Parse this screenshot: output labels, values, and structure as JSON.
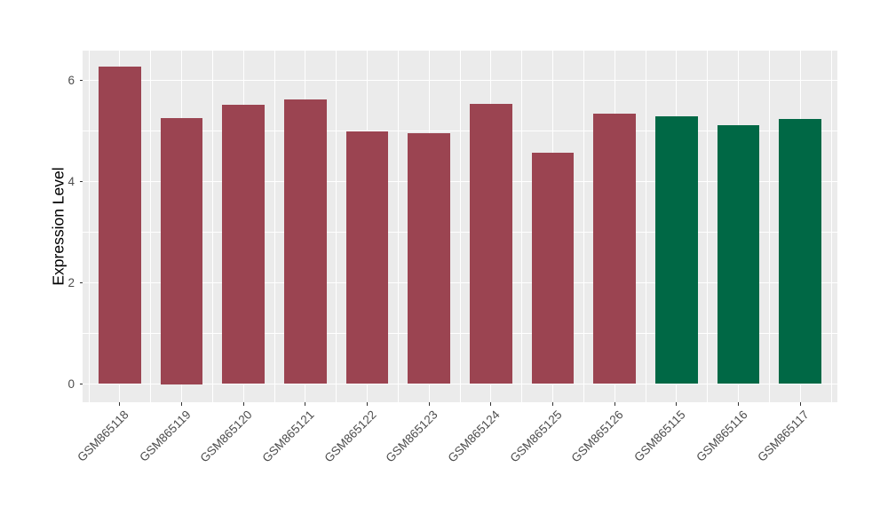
{
  "figure": {
    "background_color": "#FFFFFF",
    "panel_background_color": "#EBEBEB",
    "gridline_color": "#FFFFFF",
    "tick_label_color": "#4D4D4D",
    "axis_title_color": "#000000"
  },
  "chart_data": {
    "type": "bar",
    "title": "",
    "xlabel": "",
    "ylabel": "Expression Level",
    "categories": [
      "GSM865118",
      "GSM865119",
      "GSM865120",
      "GSM865121",
      "GSM865122",
      "GSM865123",
      "GSM865124",
      "GSM865125",
      "GSM865126",
      "GSM865115",
      "GSM865116",
      "GSM865117"
    ],
    "values": [
      6.27,
      5.25,
      5.51,
      5.63,
      4.99,
      4.96,
      5.54,
      4.57,
      5.35,
      5.29,
      5.11,
      5.24
    ],
    "bar_colors": [
      "#9B4451",
      "#9B4451",
      "#9B4451",
      "#9B4451",
      "#9B4451",
      "#9B4451",
      "#9B4451",
      "#9B4451",
      "#9B4451",
      "#006845",
      "#006845",
      "#006845"
    ],
    "color_groups": [
      {
        "color": "#9B4451",
        "categories": [
          "GSM865118",
          "GSM865119",
          "GSM865120",
          "GSM865121",
          "GSM865122",
          "GSM865123",
          "GSM865124",
          "GSM865125",
          "GSM865126"
        ]
      },
      {
        "color": "#006845",
        "categories": [
          "GSM865115",
          "GSM865116",
          "GSM865117"
        ]
      }
    ],
    "yticks": [
      0,
      2,
      4,
      6
    ],
    "yticks_minor": [
      1,
      3,
      5
    ],
    "ylim": [
      -0.31,
      6.59
    ],
    "x_label_rotation": 45,
    "grid": "on",
    "legend": "none"
  }
}
